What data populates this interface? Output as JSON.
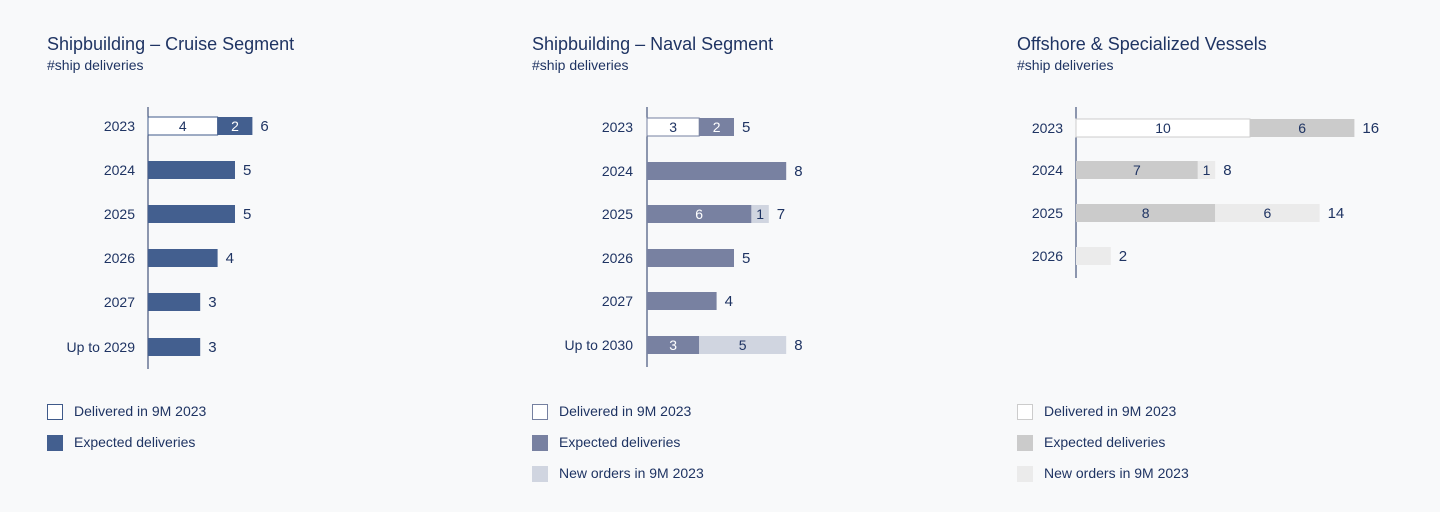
{
  "chart_data": [
    {
      "type": "bar",
      "orientation": "horizontal",
      "stacked": true,
      "title": "Shipbuilding – Cruise Segment",
      "subtitle": "#ship deliveries",
      "categories": [
        "2023",
        "2024",
        "2025",
        "2026",
        "2027",
        "Up to 2029"
      ],
      "series": [
        {
          "name": "Delivered in 9M 2023",
          "values": [
            4,
            0,
            0,
            0,
            0,
            0
          ]
        },
        {
          "name": "Expected deliveries",
          "values": [
            2,
            5,
            5,
            4,
            3,
            3
          ]
        }
      ],
      "totals": [
        6,
        5,
        5,
        4,
        3,
        3
      ],
      "colors": {
        "delivered_fill": "#ffffff",
        "delivered_border": "#3f5a8a",
        "expected": "#435f8f"
      },
      "legend_position": "bottom-left",
      "grid": false
    },
    {
      "type": "bar",
      "orientation": "horizontal",
      "stacked": true,
      "title": "Shipbuilding – Naval Segment",
      "subtitle": "#ship deliveries",
      "categories": [
        "2023",
        "2024",
        "2025",
        "2026",
        "2027",
        "Up to 2030"
      ],
      "series": [
        {
          "name": "Delivered in 9M 2023",
          "values": [
            3,
            0,
            0,
            0,
            0,
            0
          ]
        },
        {
          "name": "Expected deliveries",
          "values": [
            2,
            8,
            6,
            5,
            4,
            3
          ]
        },
        {
          "name": "New orders in 9M 2023",
          "values": [
            0,
            0,
            1,
            0,
            0,
            5
          ]
        }
      ],
      "totals": [
        5,
        8,
        7,
        5,
        4,
        8
      ],
      "colors": {
        "delivered_fill": "#ffffff",
        "delivered_border": "#7580a0",
        "expected": "#7881a1",
        "new_orders": "#d0d5e0"
      },
      "legend_position": "bottom-left",
      "grid": false
    },
    {
      "type": "bar",
      "orientation": "horizontal",
      "stacked": true,
      "title": "Offshore & Specialized Vessels",
      "subtitle": "#ship deliveries",
      "categories": [
        "2023",
        "2024",
        "2025",
        "2026"
      ],
      "series": [
        {
          "name": "Delivered in 9M 2023",
          "values": [
            10,
            0,
            0,
            0
          ]
        },
        {
          "name": "Expected deliveries",
          "values": [
            6,
            7,
            8,
            0
          ]
        },
        {
          "name": "New orders in 9M 2023",
          "values": [
            0,
            1,
            6,
            2
          ]
        }
      ],
      "totals": [
        16,
        8,
        14,
        2
      ],
      "colors": {
        "delivered_fill": "#ffffff",
        "delivered_border": "#cccccc",
        "expected": "#cbcbcb",
        "new_orders": "#ebebeb"
      },
      "legend_position": "bottom-left",
      "grid": false
    }
  ]
}
